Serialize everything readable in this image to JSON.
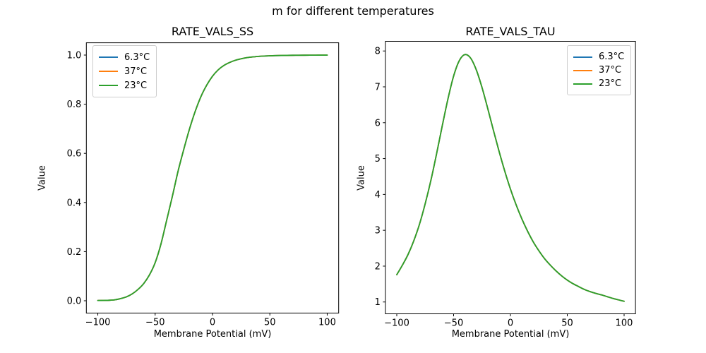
{
  "figure": {
    "suptitle": "m for different temperatures",
    "background_color": "#ffffff",
    "text_color": "#000000"
  },
  "chart_data": [
    {
      "type": "line",
      "title": "RATE_VALS_SS",
      "xlabel": "Membrane Potential (mV)",
      "ylabel": "Value",
      "xlim": [
        -110,
        110
      ],
      "ylim": [
        -0.05,
        1.05
      ],
      "grid": false,
      "xticks": [
        -100,
        -50,
        0,
        50,
        100
      ],
      "xtick_labels": [
        "−100",
        "−50",
        "0",
        "50",
        "100"
      ],
      "yticks": [
        0.0,
        0.2,
        0.4,
        0.6,
        0.8,
        1.0
      ],
      "ytick_labels": [
        "0.0",
        "0.2",
        "0.4",
        "0.6",
        "0.8",
        "1.0"
      ],
      "legend": {
        "position": "upper-left",
        "entries": [
          {
            "label": "6.3°C",
            "color": "#1f77b4"
          },
          {
            "label": "37°C",
            "color": "#ff7f0e"
          },
          {
            "label": "23°C",
            "color": "#2ca02c"
          }
        ]
      },
      "series_note": "All three temperature curves coincide exactly; the green 23°C curve (drawn last) is the visible one.",
      "x": [
        -100,
        -95,
        -90,
        -85,
        -80,
        -75,
        -70,
        -65,
        -60,
        -55,
        -50,
        -45,
        -40,
        -35,
        -30,
        -25,
        -20,
        -15,
        -10,
        -5,
        0,
        5,
        10,
        15,
        20,
        25,
        30,
        35,
        40,
        45,
        50,
        55,
        60,
        65,
        70,
        75,
        80,
        85,
        90,
        95,
        100
      ],
      "shared_values": [
        0.001,
        0.0015,
        0.002,
        0.004,
        0.009,
        0.016,
        0.028,
        0.046,
        0.07,
        0.105,
        0.155,
        0.23,
        0.327,
        0.425,
        0.528,
        0.617,
        0.7,
        0.772,
        0.832,
        0.878,
        0.914,
        0.94,
        0.958,
        0.97,
        0.979,
        0.985,
        0.9895,
        0.9925,
        0.9945,
        0.996,
        0.997,
        0.9978,
        0.9984,
        0.9988,
        0.9991,
        0.9993,
        0.9995,
        0.9996,
        0.9997,
        0.9998,
        0.9998
      ],
      "series": [
        {
          "name": "6.3°C",
          "color": "#1f77b4"
        },
        {
          "name": "37°C",
          "color": "#ff7f0e"
        },
        {
          "name": "23°C",
          "color": "#2ca02c"
        }
      ]
    },
    {
      "type": "line",
      "title": "RATE_VALS_TAU",
      "xlabel": "Membrane Potential (mV)",
      "ylabel": "Value",
      "xlim": [
        -110,
        110
      ],
      "ylim": [
        0.67,
        8.27
      ],
      "grid": false,
      "xticks": [
        -100,
        -50,
        0,
        50,
        100
      ],
      "xtick_labels": [
        "−100",
        "−50",
        "0",
        "50",
        "100"
      ],
      "yticks": [
        1,
        2,
        3,
        4,
        5,
        6,
        7,
        8
      ],
      "ytick_labels": [
        "1",
        "2",
        "3",
        "4",
        "5",
        "6",
        "7",
        "8"
      ],
      "legend": {
        "position": "upper-right",
        "entries": [
          {
            "label": "6.3°C",
            "color": "#1f77b4"
          },
          {
            "label": "37°C",
            "color": "#ff7f0e"
          },
          {
            "label": "23°C",
            "color": "#2ca02c"
          }
        ]
      },
      "series_note": "All three temperature curves coincide exactly; the green 23°C curve (drawn last) is the visible one. Peak ≈ 7.9 at ≈ −40 mV.",
      "x": [
        -100,
        -95,
        -90,
        -85,
        -80,
        -75,
        -70,
        -65,
        -60,
        -55,
        -50,
        -45,
        -40,
        -35,
        -30,
        -25,
        -20,
        -15,
        -10,
        -5,
        0,
        5,
        10,
        15,
        20,
        25,
        30,
        35,
        40,
        45,
        50,
        55,
        60,
        65,
        70,
        75,
        80,
        85,
        90,
        95,
        100
      ],
      "shared_values": [
        1.76,
        2.03,
        2.33,
        2.71,
        3.17,
        3.74,
        4.39,
        5.13,
        5.91,
        6.66,
        7.3,
        7.73,
        7.9,
        7.8,
        7.47,
        6.98,
        6.4,
        5.79,
        5.2,
        4.65,
        4.15,
        3.71,
        3.32,
        2.98,
        2.68,
        2.43,
        2.21,
        2.03,
        1.87,
        1.73,
        1.61,
        1.51,
        1.43,
        1.35,
        1.29,
        1.24,
        1.2,
        1.15,
        1.1,
        1.06,
        1.02
      ],
      "series": [
        {
          "name": "6.3°C",
          "color": "#1f77b4"
        },
        {
          "name": "37°C",
          "color": "#ff7f0e"
        },
        {
          "name": "23°C",
          "color": "#2ca02c"
        }
      ]
    }
  ]
}
